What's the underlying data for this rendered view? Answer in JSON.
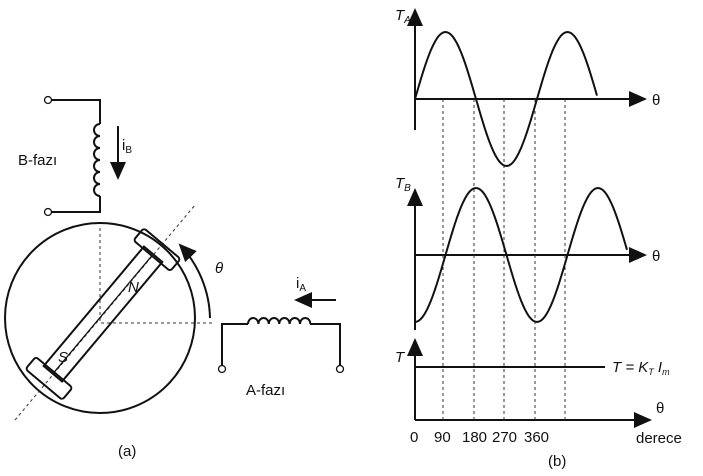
{
  "figure_a": {
    "caption": "(a)",
    "b_phase": "B-fazı",
    "b_current": {
      "main": "i",
      "sub": "B"
    },
    "a_phase": "A-fazı",
    "a_current": {
      "main": "i",
      "sub": "A"
    },
    "north": "N",
    "south": "S",
    "angle": "θ"
  },
  "figure_b": {
    "caption": "(b)",
    "ta": {
      "main": "T",
      "sub": "A"
    },
    "tb": {
      "main": "T",
      "sub": "B"
    },
    "t": "T",
    "theta_a": "θ",
    "theta_b": "θ",
    "theta_c": "θ",
    "torque_eq": {
      "lhs": "T = K",
      "sub": "T",
      "rest": " I",
      "sub2": "m"
    },
    "ticks": [
      "0",
      "90",
      "180",
      "270",
      "360"
    ],
    "unit": "derece"
  }
}
